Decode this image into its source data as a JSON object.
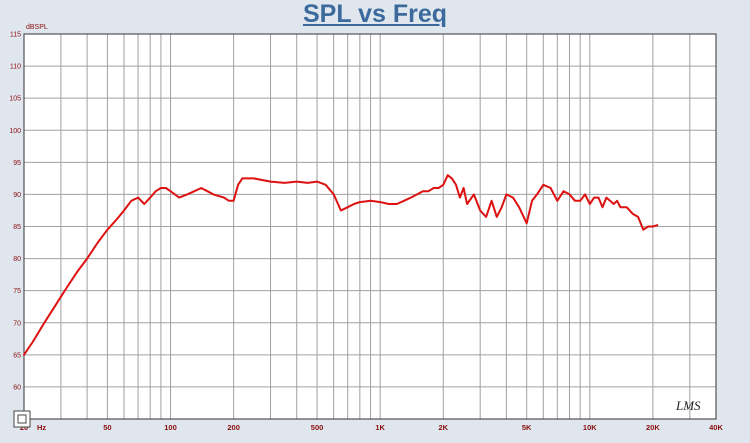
{
  "chart_data": {
    "type": "line",
    "title": "SPL vs Freq",
    "ylabel": "dBSPL",
    "x_unit": "Hz",
    "xscale": "log",
    "xlim": [
      20,
      40000
    ],
    "ylim": [
      55,
      115
    ],
    "yticks": [
      55,
      60,
      65,
      70,
      75,
      80,
      85,
      90,
      95,
      100,
      105,
      110,
      115
    ],
    "ytick_labels": [
      "55",
      "60",
      "65",
      "70",
      "75",
      "80",
      "85",
      "90",
      "95",
      "100",
      "105",
      "110",
      "115"
    ],
    "xticks": [
      20,
      50,
      100,
      200,
      500,
      1000,
      2000,
      5000,
      10000,
      20000,
      40000
    ],
    "xtick_labels": [
      "20",
      "50",
      "100",
      "200",
      "500",
      "1K",
      "2K",
      "5K",
      "10K",
      "20K",
      "40K"
    ],
    "grid": true,
    "series": [
      {
        "color": "#dd1111",
        "x": [
          20,
          22,
          25,
          28,
          32,
          36,
          40,
          45,
          50,
          55,
          60,
          65,
          70,
          75,
          80,
          85,
          90,
          95,
          100,
          110,
          120,
          130,
          140,
          150,
          160,
          180,
          190,
          200,
          210,
          220,
          250,
          300,
          350,
          400,
          450,
          500,
          550,
          600,
          650,
          700,
          750,
          800,
          900,
          1000,
          1100,
          1200,
          1300,
          1400,
          1500,
          1600,
          1700,
          1800,
          1900,
          2000,
          2100,
          2200,
          2300,
          2400,
          2500,
          2600,
          2800,
          3000,
          3200,
          3400,
          3600,
          3800,
          4000,
          4300,
          4600,
          5000,
          5300,
          5600,
          6000,
          6500,
          7000,
          7500,
          8000,
          8500,
          9000,
          9500,
          10000,
          10500,
          11000,
          11500,
          12000,
          12500,
          13000,
          13500,
          14000,
          15000,
          16000,
          17000,
          18000,
          19000,
          20000,
          21000
        ],
        "y": [
          65,
          67,
          70,
          72.5,
          75.5,
          78,
          80,
          82.5,
          84.5,
          86,
          87.5,
          89,
          89.5,
          88.5,
          89.5,
          90.5,
          91,
          91,
          90.5,
          89.5,
          90,
          90.5,
          91,
          90.5,
          90,
          89.5,
          89,
          89,
          91.5,
          92.5,
          92.5,
          92,
          91.8,
          92,
          91.8,
          92,
          91.5,
          90,
          87.5,
          88,
          88.5,
          88.8,
          89,
          88.8,
          88.5,
          88.5,
          89,
          89.5,
          90,
          90.5,
          90.5,
          91,
          91,
          91.5,
          93,
          92.5,
          91.5,
          89.5,
          91,
          88.5,
          90,
          87.5,
          86.5,
          89,
          86.5,
          88,
          90,
          89.5,
          88,
          85.5,
          89,
          90,
          91.5,
          91,
          89,
          90.5,
          90,
          89,
          89,
          90,
          88.5,
          89.5,
          89.5,
          88,
          89.5,
          89,
          88.5,
          89,
          88,
          88,
          87,
          86.5,
          84.5,
          85,
          85,
          85.2
        ]
      }
    ],
    "logo_text": "LMS"
  }
}
